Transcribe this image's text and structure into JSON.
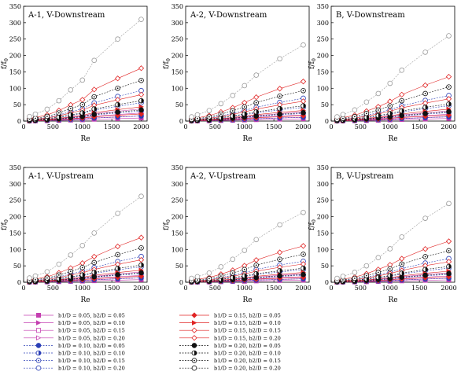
{
  "chart_data": {
    "type": "line",
    "ylabel": "f/f0",
    "xlabel": "Re",
    "x": [
      100,
      200,
      400,
      600,
      800,
      1000,
      1200,
      1600,
      2000
    ],
    "xlim": [
      0,
      2100
    ],
    "ylim": [
      0,
      350
    ],
    "xticks": [
      "0",
      "500",
      "1000",
      "1500",
      "2000"
    ],
    "yticks": [
      "0",
      "50",
      "100",
      "150",
      "200",
      "250",
      "300",
      "350"
    ],
    "grid": false,
    "panels": [
      {
        "title": "A-1, V-Downstream",
        "top_values": [
          14,
          21,
          36,
          62,
          95,
          125,
          185,
          250,
          310
        ]
      },
      {
        "title": "A-2, V-Downstream",
        "top_values": [
          13,
          19,
          32,
          53,
          78,
          108,
          140,
          190,
          232
        ]
      },
      {
        "title": "B, V-Downstream",
        "top_values": [
          13,
          20,
          34,
          58,
          84,
          115,
          155,
          210,
          260
        ]
      },
      {
        "title": "A-1, V-Upstream",
        "top_values": [
          13,
          19,
          32,
          55,
          83,
          112,
          150,
          210,
          262
        ]
      },
      {
        "title": "A-2, V-Upstream",
        "top_values": [
          12,
          17,
          28,
          47,
          70,
          97,
          130,
          175,
          213
        ]
      },
      {
        "title": "B, V-Upstream",
        "top_values": [
          12,
          18,
          30,
          50,
          75,
          102,
          138,
          195,
          240
        ]
      }
    ],
    "series": [
      {
        "name": "b1/D = 0.05, b2/D = 0.05",
        "group": "pink",
        "style": "square-filled",
        "factor": 0.03
      },
      {
        "name": "b1/D = 0.05, b2/D = 0.10",
        "group": "pink",
        "style": "triangle-half",
        "factor": 0.05
      },
      {
        "name": "b1/D = 0.05, b2/D = 0.15",
        "group": "pink",
        "style": "square-open",
        "factor": 0.08
      },
      {
        "name": "b1/D = 0.05, b2/D = 0.20",
        "group": "pink",
        "style": "triangle-open",
        "factor": 0.12
      },
      {
        "name": "b1/D = 0.10, b2/D = 0.05",
        "group": "blue",
        "style": "circle-filled",
        "factor": 0.05
      },
      {
        "name": "b1/D = 0.10, b2/D = 0.10",
        "group": "blue",
        "style": "circle-half",
        "factor": 0.1
      },
      {
        "name": "b1/D = 0.10, b2/D = 0.15",
        "group": "blue",
        "style": "circle-dot",
        "factor": 0.18
      },
      {
        "name": "b1/D = 0.10, b2/D = 0.20",
        "group": "blue",
        "style": "circle-open",
        "factor": 0.3
      },
      {
        "name": "b1/D = 0.15, b2/D = 0.05",
        "group": "red",
        "style": "diamond-filled",
        "factor": 0.07
      },
      {
        "name": "b1/D = 0.15, b2/D = 0.10",
        "group": "red",
        "style": "triangle-half",
        "factor": 0.14
      },
      {
        "name": "b1/D = 0.15, b2/D = 0.15",
        "group": "red",
        "style": "diamond-open",
        "factor": 0.26
      },
      {
        "name": "b1/D = 0.15, b2/D = 0.20",
        "group": "red",
        "style": "diamond-open",
        "factor": 0.52
      },
      {
        "name": "b1/D = 0.20, b2/D = 0.05",
        "group": "black",
        "style": "circle-filled",
        "factor": 0.11
      },
      {
        "name": "b1/D = 0.20, b2/D = 0.10",
        "group": "black",
        "style": "circle-half",
        "factor": 0.2
      },
      {
        "name": "b1/D = 0.20, b2/D = 0.15",
        "group": "black",
        "style": "circle-dot",
        "factor": 0.4
      },
      {
        "name": "b1/D = 0.20, b2/D = 0.20",
        "group": "black",
        "style": "circle-open",
        "factor": 1.0
      }
    ],
    "colors": {
      "pink": "#c43fb0",
      "blue": "#2b3fb6",
      "red": "#e02424",
      "black": "#111111",
      "top_line": "#9a9a9a"
    }
  }
}
